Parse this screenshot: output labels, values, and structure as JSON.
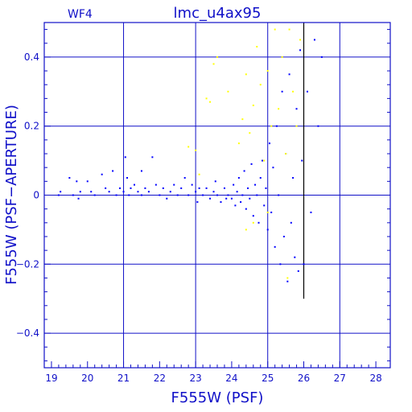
{
  "chart_data": {
    "type": "scatter",
    "panel_label": "WF4",
    "title": "lmc_u4ax95",
    "xlabel": "F555W (PSF)",
    "ylabel": "F555W (PSF−APERTURE)",
    "xlim": [
      18.8,
      28.4
    ],
    "ylim": [
      -0.5,
      0.5
    ],
    "x_ticks": [
      "19",
      "20",
      "21",
      "22",
      "23",
      "24",
      "25",
      "26",
      "27",
      "28"
    ],
    "y_ticks": [
      "−0.4",
      "−0.2",
      "0",
      "0.2",
      "0.4"
    ],
    "grid": true,
    "colors": {
      "axes": "#1010c8",
      "grid": "#1010c8",
      "primary_points": "#0000ff",
      "secondary_points": "#ffff00",
      "marker_line": "#000000"
    },
    "vertical_marker_x": 26.0,
    "series": [
      {
        "color": "#0000ff",
        "points": [
          [
            19.2,
            0.0
          ],
          [
            19.25,
            0.01
          ],
          [
            19.5,
            0.05
          ],
          [
            19.6,
            0.0
          ],
          [
            19.7,
            0.04
          ],
          [
            19.8,
            0.01
          ],
          [
            19.75,
            -0.01
          ],
          [
            20.0,
            0.04
          ],
          [
            20.1,
            0.01
          ],
          [
            20.2,
            0.0
          ],
          [
            20.4,
            0.06
          ],
          [
            20.5,
            0.02
          ],
          [
            20.6,
            0.01
          ],
          [
            20.7,
            0.07
          ],
          [
            20.8,
            0.0
          ],
          [
            20.9,
            0.02
          ],
          [
            21.0,
            0.01
          ],
          [
            21.05,
            0.11
          ],
          [
            21.1,
            0.05
          ],
          [
            21.15,
            0.0
          ],
          [
            21.2,
            0.02
          ],
          [
            21.3,
            0.03
          ],
          [
            21.4,
            0.01
          ],
          [
            21.5,
            0.0
          ],
          [
            21.5,
            0.07
          ],
          [
            21.6,
            0.02
          ],
          [
            21.7,
            0.01
          ],
          [
            21.8,
            0.11
          ],
          [
            21.9,
            0.03
          ],
          [
            22.0,
            0.0
          ],
          [
            22.1,
            0.02
          ],
          [
            22.2,
            -0.01
          ],
          [
            22.3,
            0.01
          ],
          [
            22.4,
            0.03
          ],
          [
            22.5,
            0.0
          ],
          [
            22.6,
            0.02
          ],
          [
            22.7,
            0.05
          ],
          [
            22.8,
            0.0
          ],
          [
            22.9,
            0.03
          ],
          [
            23.0,
            0.01
          ],
          [
            23.05,
            -0.02
          ],
          [
            23.1,
            0.02
          ],
          [
            23.2,
            0.0
          ],
          [
            23.3,
            0.02
          ],
          [
            23.4,
            -0.01
          ],
          [
            23.5,
            0.01
          ],
          [
            23.55,
            0.04
          ],
          [
            23.6,
            0.0
          ],
          [
            23.7,
            -0.02
          ],
          [
            23.8,
            0.02
          ],
          [
            23.85,
            -0.01
          ],
          [
            23.9,
            0.0
          ],
          [
            24.0,
            -0.01
          ],
          [
            24.05,
            0.03
          ],
          [
            24.1,
            -0.03
          ],
          [
            24.15,
            0.01
          ],
          [
            24.2,
            0.05
          ],
          [
            24.25,
            -0.02
          ],
          [
            24.3,
            0.0
          ],
          [
            24.35,
            0.07
          ],
          [
            24.4,
            -0.04
          ],
          [
            24.45,
            0.02
          ],
          [
            24.5,
            -0.01
          ],
          [
            24.55,
            0.09
          ],
          [
            24.6,
            -0.06
          ],
          [
            24.65,
            0.03
          ],
          [
            24.7,
            0.0
          ],
          [
            24.75,
            -0.08
          ],
          [
            24.8,
            0.05
          ],
          [
            24.85,
            0.1
          ],
          [
            24.9,
            -0.03
          ],
          [
            24.95,
            0.02
          ],
          [
            25.0,
            -0.1
          ],
          [
            25.05,
            0.15
          ],
          [
            25.1,
            -0.05
          ],
          [
            25.15,
            0.08
          ],
          [
            25.2,
            -0.15
          ],
          [
            25.25,
            0.2
          ],
          [
            25.3,
            0.0
          ],
          [
            25.35,
            -0.2
          ],
          [
            25.4,
            0.3
          ],
          [
            25.45,
            -0.12
          ],
          [
            25.5,
            0.12
          ],
          [
            25.55,
            -0.25
          ],
          [
            25.6,
            0.35
          ],
          [
            25.65,
            -0.08
          ],
          [
            25.7,
            0.05
          ],
          [
            25.75,
            -0.18
          ],
          [
            25.8,
            0.25
          ],
          [
            25.85,
            -0.22
          ],
          [
            25.9,
            0.42
          ],
          [
            25.95,
            0.1
          ],
          [
            26.0,
            -0.2
          ],
          [
            26.1,
            0.3
          ],
          [
            26.2,
            -0.05
          ],
          [
            26.3,
            0.45
          ],
          [
            26.4,
            0.2
          ],
          [
            26.5,
            0.4
          ]
        ]
      },
      {
        "color": "#ffff00",
        "points": [
          [
            22.8,
            0.14
          ],
          [
            23.0,
            0.13
          ],
          [
            23.1,
            0.06
          ],
          [
            23.3,
            0.28
          ],
          [
            23.4,
            0.27
          ],
          [
            23.5,
            0.38
          ],
          [
            23.6,
            0.4
          ],
          [
            23.9,
            0.3
          ],
          [
            24.2,
            0.15
          ],
          [
            24.3,
            0.22
          ],
          [
            24.4,
            0.35
          ],
          [
            24.5,
            0.18
          ],
          [
            24.6,
            0.26
          ],
          [
            24.7,
            0.43
          ],
          [
            24.8,
            0.32
          ],
          [
            24.9,
            0.1
          ],
          [
            25.0,
            0.36
          ],
          [
            25.1,
            0.2
          ],
          [
            25.2,
            0.48
          ],
          [
            25.3,
            0.25
          ],
          [
            25.4,
            0.4
          ],
          [
            25.5,
            0.12
          ],
          [
            25.55,
            -0.24
          ],
          [
            25.6,
            0.48
          ],
          [
            25.7,
            0.3
          ],
          [
            25.8,
            0.2
          ],
          [
            25.9,
            0.45
          ],
          [
            24.4,
            -0.1
          ],
          [
            24.6,
            -0.08
          ],
          [
            25.0,
            -0.05
          ]
        ]
      }
    ]
  }
}
